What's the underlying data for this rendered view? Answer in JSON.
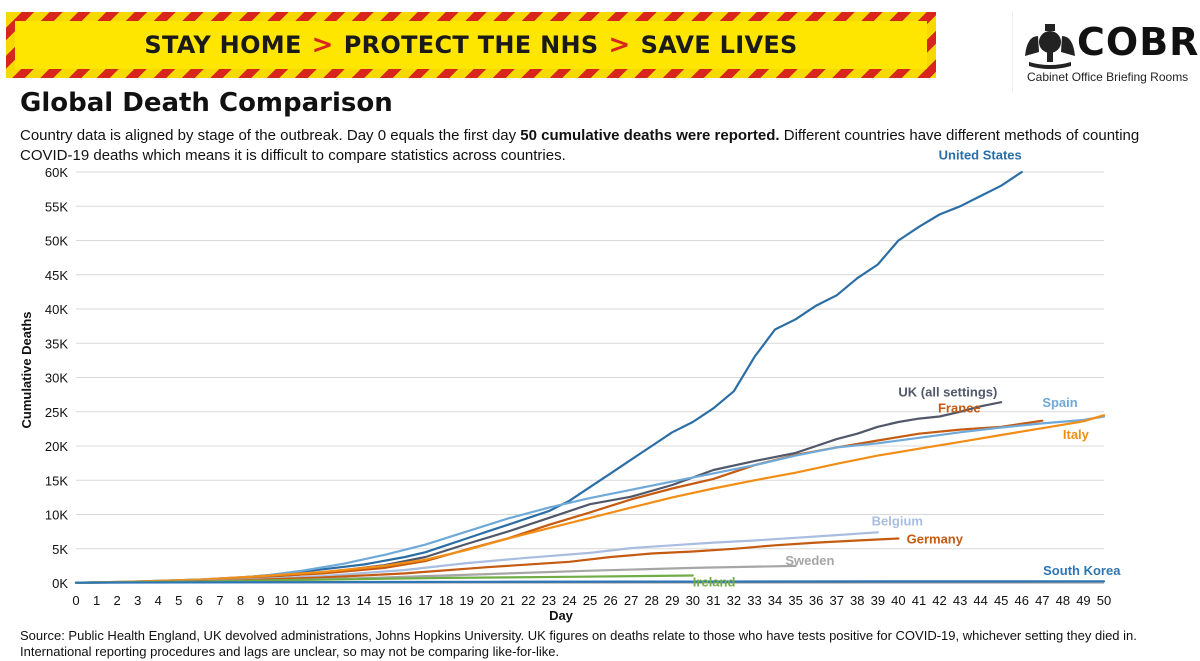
{
  "banner": {
    "part1": "STAY HOME",
    "part2": "PROTECT THE NHS",
    "part3": "SAVE LIVES",
    "separator": ">"
  },
  "logo": {
    "name": "COBR",
    "subtitle": "Cabinet Office Briefing Rooms",
    "icon": "royal-crest-icon"
  },
  "header": {
    "title": "Global Death Comparison",
    "subtitle_pre": "Country data is aligned by stage of the outbreak. Day 0 equals the first day ",
    "subtitle_bold": "50 cumulative deaths were reported.",
    "subtitle_post": " Different countries have different methods of counting COVID-19 deaths which means it is difficult to compare statistics across countries."
  },
  "footer": {
    "source_line1": "Source: Public Health England, UK devolved administrations, Johns Hopkins University. UK figures on deaths relate to those who have tests positive for COVID-19, whichever setting they died in.",
    "source_line2": "International reporting procedures and lags are unclear, so may not be comparing like-for-like."
  },
  "chart_data": {
    "type": "line",
    "xlabel": "Day",
    "ylabel": "Cumulative Deaths",
    "xlim": [
      0,
      50
    ],
    "ylim": [
      0,
      60000
    ],
    "x_ticks": [
      "0",
      "1",
      "2",
      "3",
      "4",
      "5",
      "6",
      "7",
      "8",
      "9",
      "10",
      "11",
      "12",
      "13",
      "14",
      "15",
      "16",
      "17",
      "18",
      "19",
      "20",
      "21",
      "22",
      "23",
      "24",
      "25",
      "26",
      "27",
      "28",
      "29",
      "30",
      "31",
      "32",
      "33",
      "34",
      "35",
      "36",
      "37",
      "38",
      "39",
      "40",
      "41",
      "42",
      "43",
      "44",
      "45",
      "46",
      "47",
      "48",
      "49",
      "50"
    ],
    "y_ticks": [
      {
        "value": 0,
        "label": "0K"
      },
      {
        "value": 5000,
        "label": "5K"
      },
      {
        "value": 10000,
        "label": "10K"
      },
      {
        "value": 15000,
        "label": "15K"
      },
      {
        "value": 20000,
        "label": "20K"
      },
      {
        "value": 25000,
        "label": "25K"
      },
      {
        "value": 30000,
        "label": "30K"
      },
      {
        "value": 35000,
        "label": "35K"
      },
      {
        "value": 40000,
        "label": "40K"
      },
      {
        "value": 45000,
        "label": "45K"
      },
      {
        "value": 50000,
        "label": "50K"
      },
      {
        "value": 55000,
        "label": "55K"
      },
      {
        "value": 60000,
        "label": "60K"
      }
    ],
    "grid": true,
    "legend": "inline labels at line ends",
    "series": [
      {
        "name": "United States",
        "color": "#2b6ea6",
        "label_x": 46,
        "label_y": 61800,
        "anchor": "end",
        "x": [
          0,
          2,
          4,
          6,
          8,
          10,
          12,
          14,
          16,
          17,
          18,
          19,
          20,
          21,
          22,
          23,
          24,
          25,
          26,
          27,
          28,
          29,
          30,
          31,
          32,
          33,
          34,
          35,
          36,
          37,
          38,
          39,
          40,
          41,
          42,
          43,
          44,
          45,
          46
        ],
        "y": [
          50,
          150,
          300,
          500,
          800,
          1300,
          2000,
          2700,
          3800,
          4500,
          5500,
          6500,
          7500,
          8500,
          9500,
          10500,
          12000,
          14000,
          16000,
          18000,
          20000,
          22000,
          23500,
          25500,
          28000,
          33000,
          37000,
          38500,
          40500,
          42000,
          44500,
          46500,
          50000,
          52000,
          53800,
          55000,
          56500,
          58000,
          60000
        ]
      },
      {
        "name": "UK (all settings)",
        "color": "#50586a",
        "label_x": 40,
        "label_y": 27200,
        "anchor": "start",
        "x": [
          0,
          3,
          6,
          9,
          12,
          15,
          17,
          19,
          21,
          23,
          25,
          27,
          29,
          31,
          33,
          35,
          36,
          37,
          38,
          39,
          40,
          41,
          42,
          43,
          44,
          45
        ],
        "y": [
          50,
          150,
          350,
          800,
          1500,
          2600,
          3800,
          5700,
          7500,
          9500,
          11500,
          12600,
          14300,
          16500,
          17800,
          19000,
          20000,
          21000,
          21800,
          22800,
          23500,
          24000,
          24300,
          25000,
          25800,
          26400
        ]
      },
      {
        "name": "France",
        "color": "#c55a11",
        "label_x": 44,
        "label_y": 24900,
        "anchor": "end",
        "x": [
          0,
          3,
          6,
          9,
          12,
          15,
          17,
          19,
          21,
          23,
          25,
          27,
          29,
          31,
          33,
          35,
          37,
          39,
          41,
          43,
          45,
          47
        ],
        "y": [
          50,
          150,
          400,
          900,
          1400,
          2200,
          3200,
          4900,
          6500,
          8500,
          10300,
          12200,
          13800,
          15200,
          17200,
          18700,
          19800,
          20800,
          21800,
          22400,
          22800,
          23700
        ]
      },
      {
        "name": "Spain",
        "color": "#6fa9d8",
        "label_x": 47,
        "label_y": 25700,
        "anchor": "start",
        "x": [
          0,
          3,
          6,
          9,
          11,
          13,
          15,
          17,
          19,
          21,
          23,
          25,
          27,
          29,
          31,
          33,
          35,
          37,
          39,
          41,
          43,
          45,
          47,
          49,
          50
        ],
        "y": [
          50,
          200,
          500,
          1000,
          1800,
          2800,
          4100,
          5600,
          7500,
          9400,
          11000,
          12400,
          13600,
          14800,
          16000,
          17200,
          18600,
          19800,
          20400,
          21200,
          22000,
          22700,
          23300,
          23800,
          24300
        ]
      },
      {
        "name": "Italy",
        "color": "#f28e16",
        "label_x": 48,
        "label_y": 21000,
        "anchor": "start",
        "x": [
          0,
          3,
          6,
          9,
          12,
          15,
          17,
          19,
          21,
          23,
          25,
          27,
          29,
          31,
          33,
          35,
          37,
          39,
          41,
          43,
          45,
          47,
          49,
          50
        ],
        "y": [
          50,
          200,
          500,
          1000,
          1600,
          2500,
          3400,
          4800,
          6500,
          8000,
          9500,
          11000,
          12500,
          13800,
          15000,
          16100,
          17400,
          18600,
          19600,
          20600,
          21600,
          22600,
          23600,
          24500
        ]
      },
      {
        "name": "Belgium",
        "color": "#a9bde0",
        "label_x": 38.7,
        "label_y": 8400,
        "anchor": "start",
        "x": [
          0,
          4,
          8,
          12,
          16,
          19,
          22,
          25,
          27,
          29,
          31,
          33,
          35,
          37,
          39
        ],
        "y": [
          50,
          150,
          450,
          1000,
          1900,
          2900,
          3700,
          4400,
          5100,
          5500,
          5900,
          6200,
          6600,
          7000,
          7400
        ]
      },
      {
        "name": "Germany",
        "color": "#c55a11",
        "label_x": 40.4,
        "label_y": 5800,
        "anchor": "start",
        "x": [
          0,
          4,
          8,
          12,
          16,
          20,
          24,
          26,
          28,
          30,
          32,
          34,
          36,
          38,
          40
        ],
        "y": [
          50,
          150,
          400,
          800,
          1400,
          2300,
          3100,
          3800,
          4300,
          4600,
          5000,
          5500,
          5900,
          6200,
          6500
        ]
      },
      {
        "name": "Sweden",
        "color": "#a6a6a6",
        "label_x": 34.5,
        "label_y": 2600,
        "anchor": "start",
        "x": [
          0,
          5,
          10,
          15,
          20,
          25,
          30,
          35
        ],
        "y": [
          50,
          150,
          400,
          800,
          1300,
          1800,
          2200,
          2500
        ]
      },
      {
        "name": "Ireland",
        "color": "#70ad47",
        "label_x": 30,
        "label_y": -500,
        "anchor": "start",
        "x": [
          0,
          6,
          12,
          18,
          24,
          30
        ],
        "y": [
          50,
          200,
          500,
          750,
          900,
          1100
        ]
      },
      {
        "name": "South Korea",
        "color": "#2e75b6",
        "label_x": 50.8,
        "label_y": 1200,
        "anchor": "end",
        "x": [
          0,
          10,
          20,
          30,
          40,
          50
        ],
        "y": [
          50,
          120,
          170,
          210,
          240,
          250
        ]
      }
    ]
  }
}
